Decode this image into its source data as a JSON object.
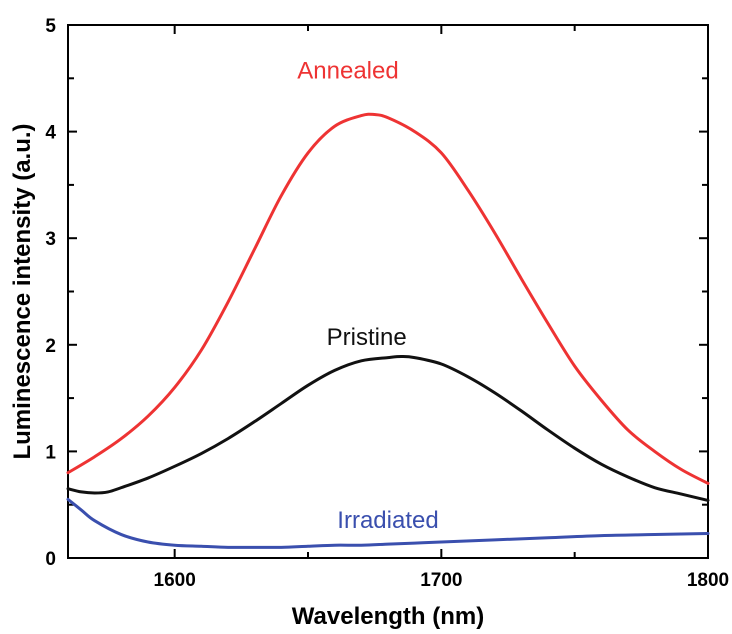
{
  "chart_data": {
    "type": "line",
    "xlabel": "Wavelength (nm)",
    "ylabel": "Luminescence intensity (a.u.)",
    "xlim": [
      1560,
      1800
    ],
    "ylim": [
      0,
      5
    ],
    "x_ticks": [
      1600,
      1700,
      1800
    ],
    "y_ticks": [
      0,
      1,
      2,
      3,
      4,
      5
    ],
    "grid": false,
    "series": [
      {
        "name": "Annealed",
        "color": "#ee3333",
        "x": [
          1560,
          1570,
          1580,
          1590,
          1600,
          1610,
          1620,
          1630,
          1640,
          1650,
          1660,
          1670,
          1675,
          1680,
          1690,
          1700,
          1710,
          1720,
          1730,
          1740,
          1750,
          1760,
          1770,
          1780,
          1790,
          1800
        ],
        "y": [
          0.8,
          0.95,
          1.12,
          1.33,
          1.6,
          1.95,
          2.4,
          2.9,
          3.4,
          3.8,
          4.05,
          4.15,
          4.16,
          4.13,
          4.0,
          3.8,
          3.45,
          3.05,
          2.62,
          2.2,
          1.8,
          1.48,
          1.2,
          1.0,
          0.83,
          0.7
        ]
      },
      {
        "name": "Pristine",
        "color": "#111111",
        "x": [
          1560,
          1565,
          1570,
          1575,
          1580,
          1590,
          1600,
          1610,
          1620,
          1630,
          1640,
          1650,
          1660,
          1670,
          1680,
          1685,
          1690,
          1700,
          1710,
          1720,
          1730,
          1740,
          1750,
          1760,
          1770,
          1780,
          1790,
          1800
        ],
        "y": [
          0.65,
          0.62,
          0.61,
          0.62,
          0.66,
          0.75,
          0.86,
          0.98,
          1.12,
          1.28,
          1.45,
          1.62,
          1.76,
          1.85,
          1.88,
          1.89,
          1.88,
          1.82,
          1.7,
          1.55,
          1.38,
          1.2,
          1.03,
          0.88,
          0.76,
          0.66,
          0.6,
          0.54
        ]
      },
      {
        "name": "Irradiated",
        "color": "#3a4fae",
        "x": [
          1560,
          1565,
          1570,
          1580,
          1590,
          1600,
          1610,
          1620,
          1630,
          1640,
          1650,
          1660,
          1670,
          1680,
          1690,
          1700,
          1720,
          1740,
          1760,
          1780,
          1800
        ],
        "y": [
          0.55,
          0.45,
          0.35,
          0.22,
          0.15,
          0.12,
          0.11,
          0.1,
          0.1,
          0.1,
          0.11,
          0.12,
          0.12,
          0.13,
          0.14,
          0.15,
          0.17,
          0.19,
          0.21,
          0.22,
          0.23
        ]
      }
    ],
    "annotations": [
      {
        "text": "Annealed",
        "x": 1665,
        "y": 4.5,
        "color": "#ee3333"
      },
      {
        "text": "Pristine",
        "x": 1672,
        "y": 2.0,
        "color": "#111111"
      },
      {
        "text": "Irradiated",
        "x": 1680,
        "y": 0.28,
        "color": "#3a4fae"
      }
    ]
  }
}
